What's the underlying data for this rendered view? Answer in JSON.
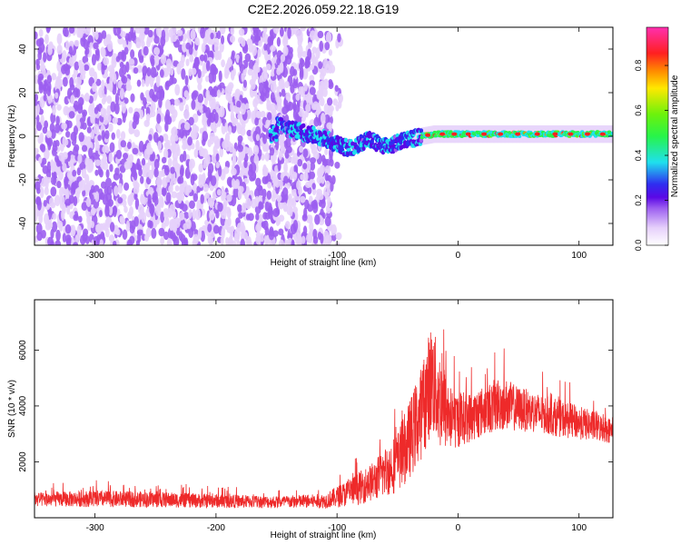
{
  "title": "C2E2.2026.059.22.18.G19",
  "chart_data": [
    {
      "type": "heatmap",
      "xlabel": "Height of straight line (km)",
      "ylabel": "Frequency (Hz)",
      "xlim": [
        -350,
        128
      ],
      "ylim": [
        -50,
        50
      ],
      "x_ticks": [
        -300,
        -200,
        -100,
        0,
        100
      ],
      "y_ticks": [
        -40,
        -20,
        0,
        20,
        40
      ],
      "colorbar": {
        "label": "Normalized spectral amplitude",
        "range": [
          0,
          0.97
        ],
        "ticks": [
          0.0,
          0.2,
          0.4,
          0.6,
          0.8
        ],
        "colormap": [
          "#ffffff",
          "#e6d0fb",
          "#9c5ef0",
          "#5a08e6",
          "#2f2df0",
          "#1fe0ee",
          "#27f44a",
          "#6cf20c",
          "#ffe800",
          "#ff8a00",
          "#ff2020",
          "#ff2fb0"
        ]
      },
      "description_points": {
        "noise_region": [
          -350,
          -105
        ],
        "signal_track": [
          [
            -150,
            5
          ],
          [
            -130,
            2
          ],
          [
            -110,
            -1
          ],
          [
            -95,
            -5
          ],
          [
            -85,
            -5
          ],
          [
            -75,
            -1
          ],
          [
            -65,
            -4
          ],
          [
            -55,
            -4
          ],
          [
            -45,
            -2
          ],
          [
            -30,
            0
          ],
          [
            -20,
            1
          ],
          [
            0,
            1
          ],
          [
            20,
            1
          ],
          [
            50,
            1
          ],
          [
            80,
            1
          ],
          [
            100,
            1
          ],
          [
            128,
            1
          ]
        ]
      }
    },
    {
      "type": "line",
      "xlabel": "Height of straight line (km)",
      "ylabel": "SNR (10 * v/v)",
      "xlim": [
        -350,
        128
      ],
      "ylim": [
        0,
        7800
      ],
      "x_ticks": [
        -300,
        -200,
        -100,
        0,
        100
      ],
      "y_ticks": [
        2000,
        4000,
        6000
      ],
      "series": [
        {
          "color": "#ee2a2a",
          "envelope": {
            "x": [
              -350,
              -300,
              -250,
              -200,
              -150,
              -110,
              -90,
              -70,
              -50,
              -40,
              -30,
              -22,
              -15,
              -5,
              10,
              25,
              35,
              50,
              70,
              90,
              110,
              128
            ],
            "mean": [
              650,
              680,
              650,
              600,
              560,
              600,
              900,
              1300,
              2000,
              2800,
              3800,
              5000,
              4200,
              3500,
              3600,
              3900,
              4100,
              3900,
              3700,
              3500,
              3300,
              3100
            ],
            "spread": [
              250,
              300,
              280,
              250,
              220,
              260,
              500,
              700,
              1100,
              1400,
              1700,
              2000,
              1800,
              1100,
              900,
              900,
              1000,
              800,
              700,
              650,
              550,
              450
            ]
          }
        }
      ]
    }
  ]
}
